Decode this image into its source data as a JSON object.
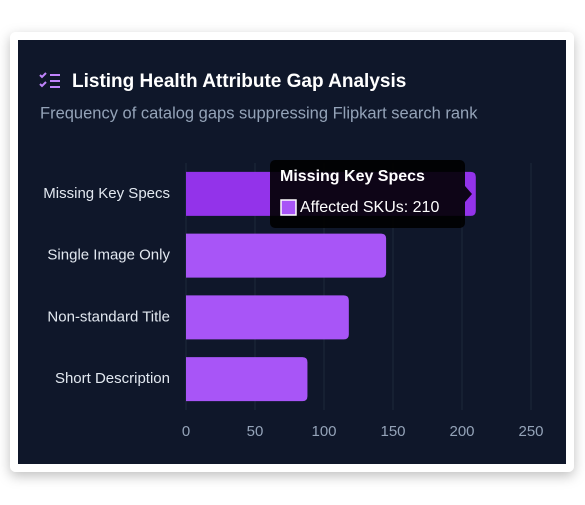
{
  "chart_data": {
    "type": "bar",
    "orientation": "horizontal",
    "title": "Listing Health Attribute Gap Analysis",
    "subtitle": "Frequency of catalog gaps suppressing Flipkart search rank",
    "categories": [
      "Missing Key Specs",
      "Single Image Only",
      "Non-standard Title",
      "Short Description"
    ],
    "values": [
      210,
      145,
      118,
      88
    ],
    "color": "#a855f7",
    "highlight_color": "#9333ea",
    "xlim": [
      0,
      250
    ],
    "xticks": [
      0,
      50,
      100,
      150,
      200,
      250
    ],
    "grid": true,
    "tooltip": {
      "title": "Missing Key Specs",
      "label": "Affected SKUs: 210"
    }
  }
}
